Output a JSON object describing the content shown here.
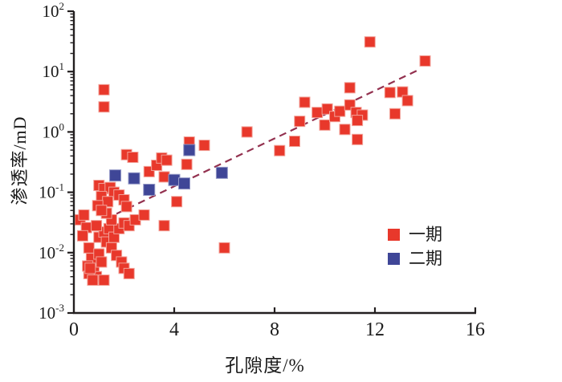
{
  "chart_data": {
    "type": "scatter",
    "title": "",
    "xlabel": "孔隙度/%",
    "ylabel": "渗透率/mD",
    "xlim": [
      0,
      16
    ],
    "x_ticks": [
      0,
      4,
      8,
      12,
      16
    ],
    "y_scale": "log",
    "ylim": [
      0.001,
      100
    ],
    "y_tick_exponents": [
      2,
      1,
      0,
      -1,
      -2,
      -3
    ],
    "grid": false,
    "legend_position": "lower-right",
    "axis_color": "#231f20",
    "series": [
      {
        "name": "一期",
        "marker": "square",
        "color": "#e8382b",
        "edge_color": "#f2a198",
        "points": [
          [
            1.2,
            5.0
          ],
          [
            1.2,
            2.6
          ],
          [
            2.1,
            0.42
          ],
          [
            2.35,
            0.38
          ],
          [
            3.0,
            0.22
          ],
          [
            3.3,
            0.28
          ],
          [
            3.5,
            0.37
          ],
          [
            3.7,
            0.34
          ],
          [
            3.6,
            0.18
          ],
          [
            4.5,
            0.29
          ],
          [
            4.6,
            0.68
          ],
          [
            5.2,
            0.6
          ],
          [
            1.0,
            0.13
          ],
          [
            1.2,
            0.115
          ],
          [
            1.45,
            0.12
          ],
          [
            1.6,
            0.1
          ],
          [
            1.8,
            0.09
          ],
          [
            2.0,
            0.075
          ],
          [
            1.1,
            0.085
          ],
          [
            1.35,
            0.07
          ],
          [
            0.95,
            0.06
          ],
          [
            2.1,
            0.058
          ],
          [
            0.25,
            0.035
          ],
          [
            0.4,
            0.042
          ],
          [
            0.5,
            0.026
          ],
          [
            0.35,
            0.019
          ],
          [
            0.6,
            0.012
          ],
          [
            0.7,
            0.008
          ],
          [
            0.8,
            0.005
          ],
          [
            0.9,
            0.004
          ],
          [
            0.6,
            0.0045
          ],
          [
            0.75,
            0.0035
          ],
          [
            1.0,
            0.0095
          ],
          [
            1.1,
            0.007
          ],
          [
            1.2,
            0.0035
          ],
          [
            1.0,
            0.018
          ],
          [
            1.2,
            0.022
          ],
          [
            1.4,
            0.025
          ],
          [
            1.3,
            0.015
          ],
          [
            1.5,
            0.012
          ],
          [
            1.6,
            0.018
          ],
          [
            1.7,
            0.009
          ],
          [
            1.9,
            0.007
          ],
          [
            2.0,
            0.0055
          ],
          [
            2.2,
            0.0045
          ],
          [
            1.8,
            0.025
          ],
          [
            2.0,
            0.031
          ],
          [
            2.2,
            0.028
          ],
          [
            2.45,
            0.035
          ],
          [
            2.8,
            0.042
          ],
          [
            1.5,
            0.035
          ],
          [
            1.3,
            0.045
          ],
          [
            1.1,
            0.05
          ],
          [
            0.9,
            0.028
          ],
          [
            0.55,
            0.006
          ],
          [
            0.65,
            0.0055
          ],
          [
            3.6,
            0.028
          ],
          [
            4.1,
            0.07
          ],
          [
            6.0,
            0.012
          ],
          [
            6.9,
            1.0
          ],
          [
            8.2,
            0.49
          ],
          [
            8.8,
            0.7
          ],
          [
            9.0,
            1.5
          ],
          [
            9.2,
            3.1
          ],
          [
            9.7,
            2.1
          ],
          [
            10.1,
            2.4
          ],
          [
            10.0,
            1.3
          ],
          [
            10.4,
            1.8
          ],
          [
            10.6,
            2.2
          ],
          [
            10.8,
            1.1
          ],
          [
            11.0,
            2.8
          ],
          [
            11.25,
            2.1
          ],
          [
            11.5,
            1.9
          ],
          [
            11.3,
            1.55
          ],
          [
            11.3,
            0.75
          ],
          [
            11.0,
            5.4
          ],
          [
            11.8,
            31
          ],
          [
            12.6,
            4.5
          ],
          [
            13.1,
            4.6
          ],
          [
            13.3,
            3.3
          ],
          [
            12.8,
            2.0
          ],
          [
            14.0,
            15
          ]
        ]
      },
      {
        "name": "二期",
        "marker": "square",
        "color": "#3f4697",
        "edge_color": "#9398c6",
        "points": [
          [
            1.65,
            0.19
          ],
          [
            2.4,
            0.17
          ],
          [
            3.0,
            0.11
          ],
          [
            4.0,
            0.16
          ],
          [
            4.4,
            0.14
          ],
          [
            4.6,
            0.5
          ],
          [
            5.9,
            0.21
          ]
        ]
      }
    ],
    "trendline": {
      "style": "dashed",
      "color": "#93314f",
      "from": [
        1.7,
        0.044
      ],
      "to": [
        13.8,
        11
      ]
    }
  }
}
